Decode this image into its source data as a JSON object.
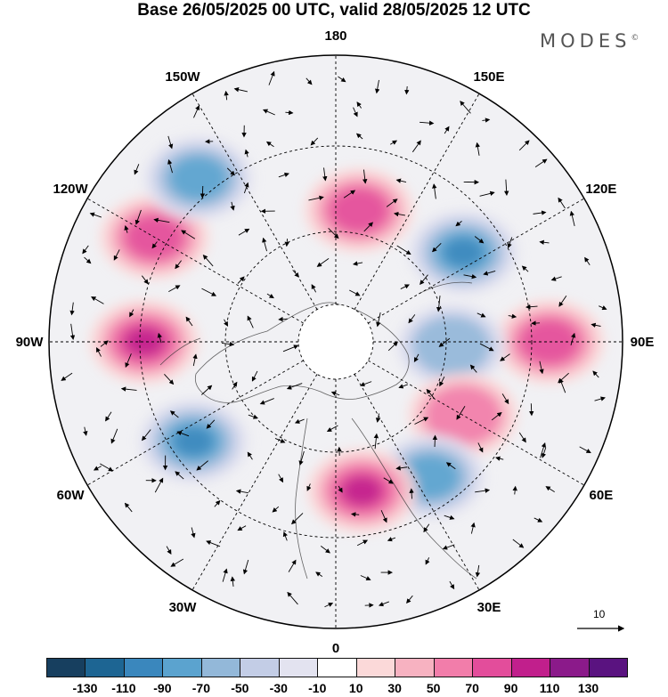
{
  "title": "Base 26/05/2025 00 UTC, valid 28/05/2025 12 UTC",
  "brand": {
    "name": "MODES",
    "mark": "©"
  },
  "map": {
    "projection": "north-polar-stereographic",
    "longitude_labels": [
      "180",
      "150E",
      "120E",
      "90E",
      "60E",
      "30E",
      "0",
      "30W",
      "60W",
      "90W",
      "120W",
      "150W"
    ]
  },
  "reference_vector": {
    "label": "10"
  },
  "colorbar": {
    "colors": [
      "#173f5f",
      "#1d6593",
      "#3a87bd",
      "#5ba3cf",
      "#93b8d9",
      "#c3cde6",
      "#e3e3f0",
      "#ffffff",
      "#fbd9d9",
      "#f7b2c1",
      "#f27daa",
      "#e34d9b",
      "#c11f8c",
      "#8b1a8a",
      "#5a1380"
    ],
    "tick_labels": [
      "-130",
      "-110",
      "-90",
      "-70",
      "-50",
      "-30",
      "-10",
      "10",
      "30",
      "50",
      "70",
      "90",
      "110",
      "130"
    ]
  },
  "anomaly_centers": [
    {
      "lon": 170,
      "value": 80
    },
    {
      "lon": 125,
      "value": -90
    },
    {
      "lon": 90,
      "value": 80
    },
    {
      "lon": 88,
      "value": -60
    },
    {
      "lon": 60,
      "value": 50
    },
    {
      "lon": 35,
      "value": -80
    },
    {
      "lon": 10,
      "value": 90
    },
    {
      "lon": 305,
      "value": -100
    },
    {
      "lon": 270,
      "value": 90
    },
    {
      "lon": 240,
      "value": 70
    },
    {
      "lon": 220,
      "value": -80
    }
  ]
}
